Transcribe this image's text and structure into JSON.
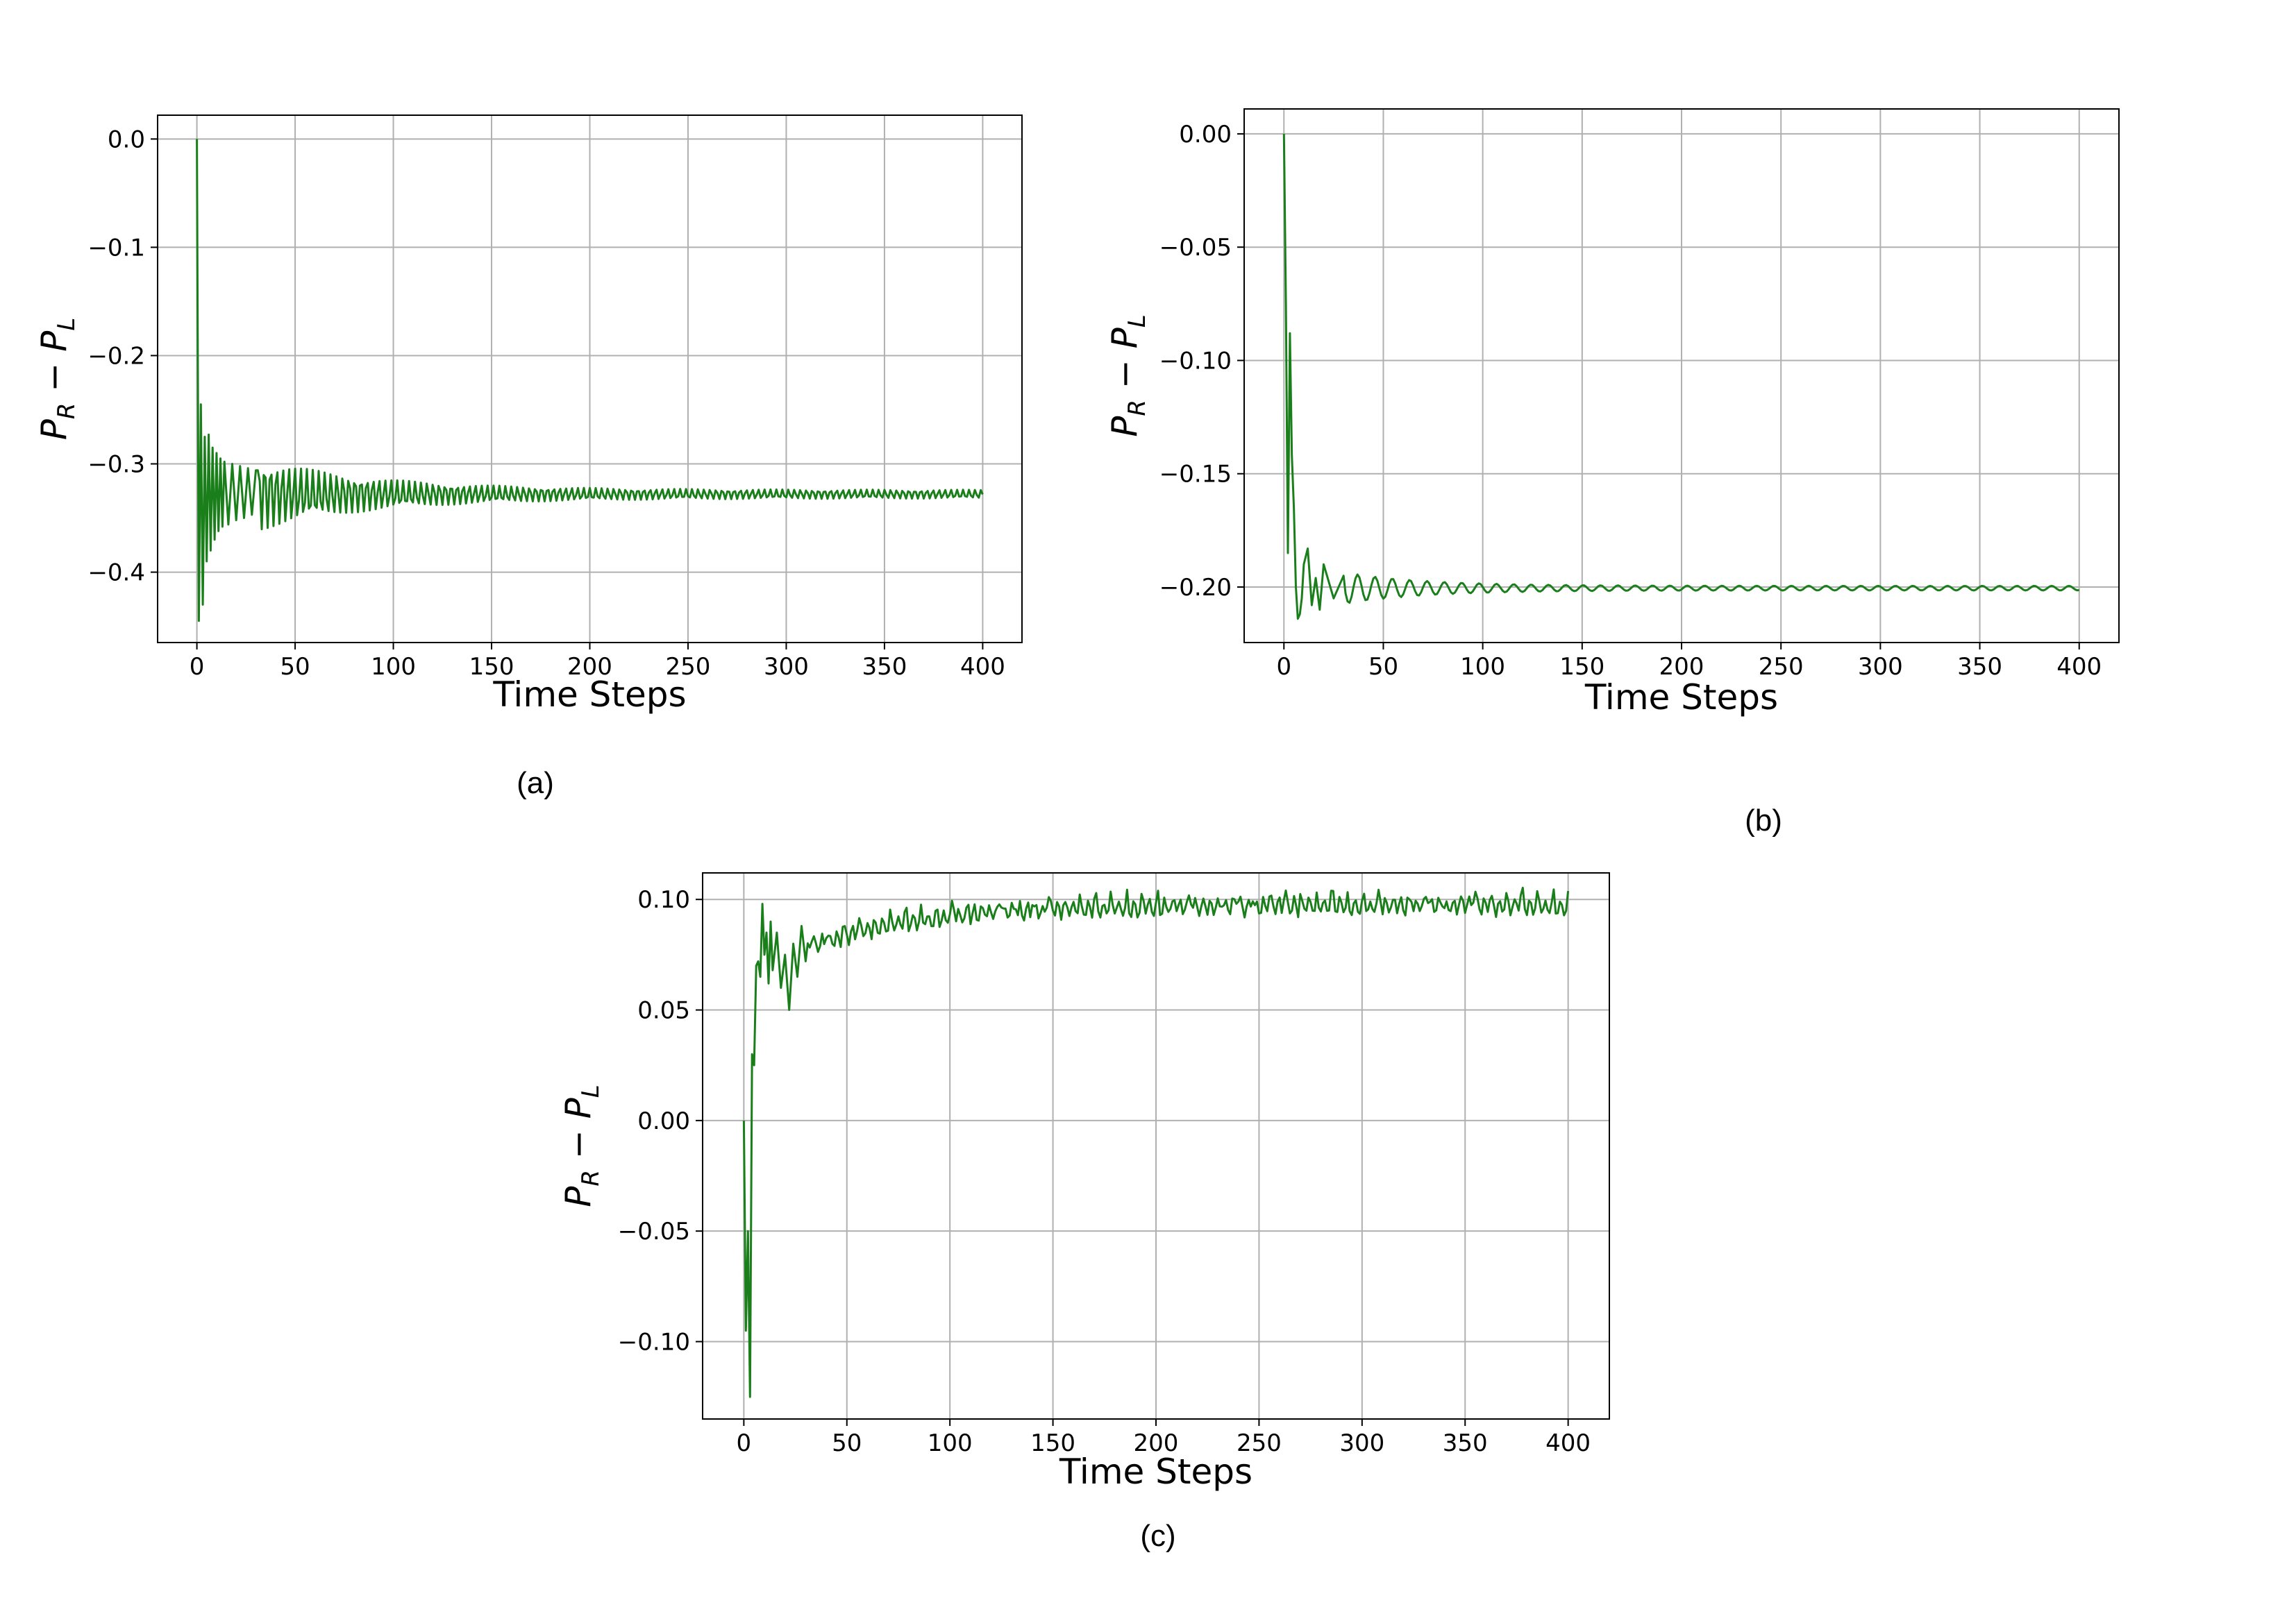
{
  "chart_data": [
    {
      "type": "line",
      "caption": "(a)",
      "xlabel": "Time Steps",
      "ylabel": {
        "p": "P",
        "r": "R",
        "minus": " − ",
        "l": "L"
      },
      "xlim": [
        -20,
        420
      ],
      "ylim": [
        -0.465,
        0.022
      ],
      "xticks": [
        0,
        50,
        100,
        150,
        200,
        250,
        300,
        350,
        400
      ],
      "xtick_labels": [
        "0",
        "50",
        "100",
        "150",
        "200",
        "250",
        "300",
        "350",
        "400"
      ],
      "yticks": [
        0.0,
        -0.1,
        -0.2,
        -0.3,
        -0.4
      ],
      "ytick_labels": [
        "0.0",
        "−0.1",
        "−0.2",
        "−0.3",
        "−0.4"
      ],
      "grid": true,
      "color": "#1a7f1a",
      "series": [
        {
          "x": [
            0,
            1,
            2,
            3,
            4,
            5,
            6,
            7,
            8,
            9,
            10,
            11,
            12,
            13,
            14,
            16,
            18,
            20,
            22,
            24,
            26,
            28,
            30,
            35,
            40,
            50,
            60,
            80,
            100,
            130,
            160,
            200,
            250,
            300,
            350,
            400
          ],
          "y": [
            0.0,
            -0.445,
            -0.245,
            -0.43,
            -0.275,
            -0.39,
            -0.273,
            -0.38,
            -0.285,
            -0.37,
            -0.29,
            -0.362,
            -0.295,
            -0.358,
            -0.298,
            -0.356,
            -0.3,
            -0.352,
            -0.302,
            -0.35,
            -0.304,
            -0.347,
            -0.306,
            -0.346,
            -0.31,
            -0.343,
            -0.312,
            -0.34,
            -0.315,
            -0.338,
            -0.318,
            -0.337,
            -0.32,
            -0.336,
            -0.322,
            -0.328
          ]
        }
      ]
    },
    {
      "type": "line",
      "caption": "(b)",
      "xlabel": "Time Steps",
      "ylabel": {
        "p": "P",
        "r": "R",
        "minus": " − ",
        "l": "L"
      },
      "xlim": [
        -20,
        420
      ],
      "ylim": [
        -0.2245,
        0.011
      ],
      "xticks": [
        0,
        50,
        100,
        150,
        200,
        250,
        300,
        350,
        400
      ],
      "xtick_labels": [
        "0",
        "50",
        "100",
        "150",
        "200",
        "250",
        "300",
        "350",
        "400"
      ],
      "yticks": [
        0.0,
        -0.05,
        -0.1,
        -0.15,
        -0.2
      ],
      "ytick_labels": [
        "0.00",
        "−0.05",
        "−0.10",
        "−0.15",
        "−0.20"
      ],
      "grid": true,
      "color": "#1a7f1a",
      "series": [
        {
          "x": [
            0,
            1,
            2,
            3,
            4,
            5,
            6,
            7,
            8,
            9,
            10,
            12,
            14,
            16,
            18,
            20,
            25,
            30,
            40,
            50,
            60,
            80,
            100,
            150,
            200,
            250,
            300,
            350,
            400
          ],
          "y": [
            0.0,
            -0.075,
            -0.185,
            -0.088,
            -0.142,
            -0.165,
            -0.2,
            -0.214,
            -0.212,
            -0.205,
            -0.19,
            -0.183,
            -0.208,
            -0.196,
            -0.21,
            -0.19,
            -0.205,
            -0.195,
            -0.204,
            -0.198,
            -0.203,
            -0.199,
            -0.202,
            -0.2,
            -0.201,
            -0.2,
            -0.201,
            -0.2,
            -0.201
          ]
        }
      ]
    },
    {
      "type": "line",
      "caption": "(c)",
      "xlabel": "Time Steps",
      "ylabel": {
        "p": "P",
        "r": "R",
        "minus": " − ",
        "l": "L"
      },
      "xlim": [
        -20,
        420
      ],
      "ylim": [
        -0.135,
        0.112
      ],
      "xticks": [
        0,
        50,
        100,
        150,
        200,
        250,
        300,
        350,
        400
      ],
      "xtick_labels": [
        "0",
        "50",
        "100",
        "150",
        "200",
        "250",
        "300",
        "350",
        "400"
      ],
      "yticks": [
        0.1,
        0.05,
        0.0,
        -0.05,
        -0.1
      ],
      "ytick_labels": [
        "0.10",
        "0.05",
        "0.00",
        "−0.05",
        "−0.10"
      ],
      "grid": true,
      "color": "#1a7f1a",
      "series": [
        {
          "x": [
            0,
            1,
            2,
            3,
            4,
            5,
            6,
            7,
            8,
            9,
            10,
            11,
            12,
            13,
            14,
            16,
            18,
            20,
            22,
            24,
            26,
            28,
            30,
            35,
            40,
            45,
            50,
            60,
            70,
            80,
            90,
            100,
            120,
            140,
            160,
            180,
            200,
            250,
            300,
            350,
            400
          ],
          "y": [
            0.0,
            -0.095,
            -0.05,
            -0.125,
            0.03,
            0.025,
            0.07,
            0.072,
            0.065,
            0.098,
            0.075,
            0.085,
            0.062,
            0.09,
            0.068,
            0.085,
            0.06,
            0.075,
            0.05,
            0.08,
            0.065,
            0.088,
            0.072,
            0.095,
            0.075,
            0.09,
            0.082,
            0.09,
            0.085,
            0.092,
            0.088,
            0.094,
            0.09,
            0.096,
            0.092,
            0.097,
            0.093,
            0.097,
            0.095,
            0.098,
            0.097
          ]
        }
      ]
    }
  ]
}
